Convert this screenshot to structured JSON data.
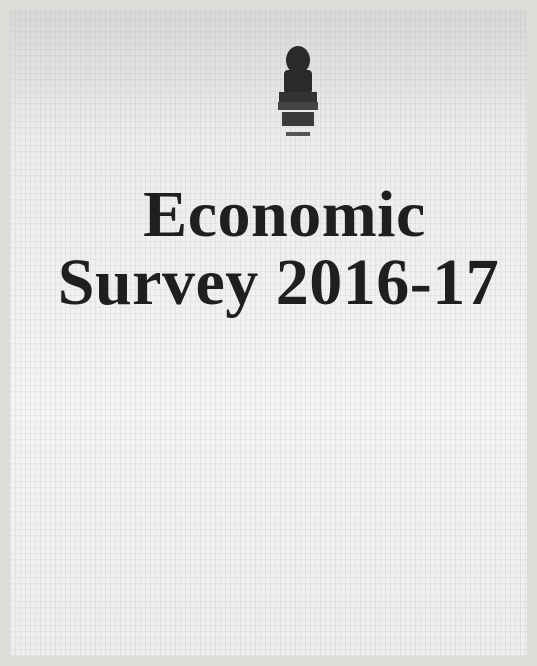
{
  "cover": {
    "title_lines": [
      "Economic",
      "Survey 2016-17"
    ]
  }
}
